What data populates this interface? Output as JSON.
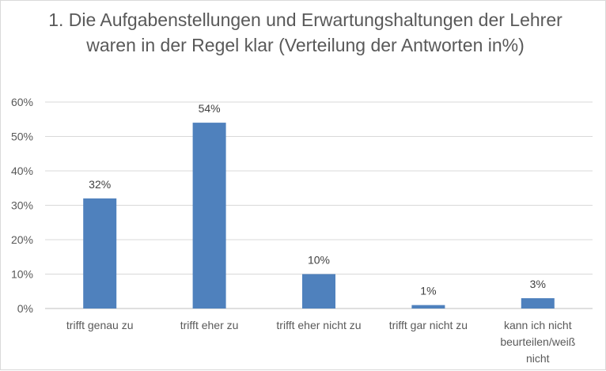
{
  "chart_data": {
    "type": "bar",
    "title": "1. Die Aufgabenstellungen und Erwartungshaltungen der Lehrer waren in der Regel klar (Verteilung der Antworten in%)",
    "categories": [
      "trifft genau zu",
      "trifft eher zu",
      "trifft eher nicht zu",
      "trifft gar nicht zu",
      "kann ich nicht beurteilen/weiß nicht"
    ],
    "values": [
      32,
      54,
      10,
      1,
      3
    ],
    "data_labels": [
      "32%",
      "54%",
      "10%",
      "1%",
      "3%"
    ],
    "ylim": [
      0,
      60
    ],
    "yticks": [
      "0%",
      "10%",
      "20%",
      "30%",
      "40%",
      "50%",
      "60%"
    ],
    "xlabel": "",
    "ylabel": "",
    "grid": true,
    "legend": "none",
    "bar_color": "#4f81bd"
  }
}
